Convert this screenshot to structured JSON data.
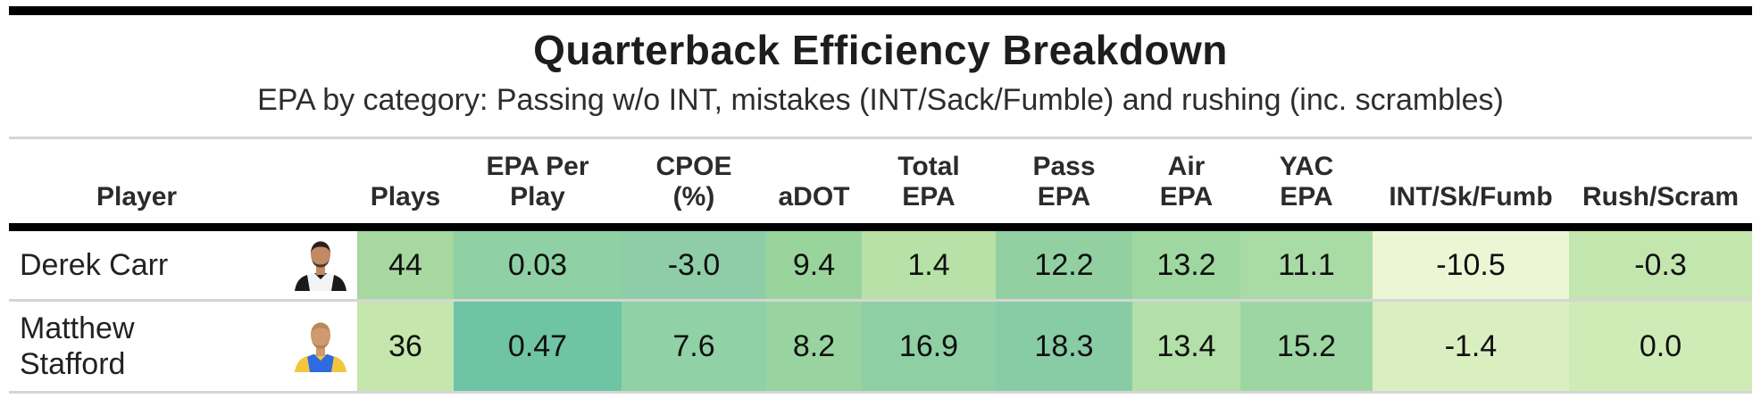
{
  "colors": {
    "top_bar": "#000000",
    "header_rule": "#000000",
    "separator": "#d5d5d5"
  },
  "chart_data": {
    "type": "table",
    "title": "Quarterback Efficiency Breakdown",
    "subtitle": "EPA by category: Passing w/o INT, mistakes (INT/Sack/Fumble) and rushing (inc. scrambles)",
    "columns": [
      {
        "id": "player",
        "label_lines": [
          "Player"
        ]
      },
      {
        "id": "plays",
        "label_lines": [
          "Plays"
        ]
      },
      {
        "id": "epa_per_play",
        "label_lines": [
          "EPA Per",
          "Play"
        ]
      },
      {
        "id": "cpoe_pct",
        "label_lines": [
          "CPOE",
          "(%)"
        ]
      },
      {
        "id": "adot",
        "label_lines": [
          "aDOT"
        ]
      },
      {
        "id": "total_epa",
        "label_lines": [
          "Total",
          "EPA"
        ]
      },
      {
        "id": "pass_epa",
        "label_lines": [
          "Pass",
          "EPA"
        ]
      },
      {
        "id": "air_epa",
        "label_lines": [
          "Air",
          "EPA"
        ]
      },
      {
        "id": "yac_epa",
        "label_lines": [
          "YAC",
          "EPA"
        ]
      },
      {
        "id": "int_sk_fumb",
        "label_lines": [
          "INT/Sk/Fumb"
        ]
      },
      {
        "id": "rush_scram",
        "label_lines": [
          "Rush/Scram"
        ]
      }
    ],
    "rows": [
      {
        "player": "Derek Carr",
        "headshot": {
          "icon": "derek-carr-headshot-icon",
          "jersey": "#f2f3f5",
          "jersey_accent": "#1a1a1a",
          "collar": "#1a1a1a",
          "skin": "#c28a62",
          "hair": "#2a211c",
          "beard": "#3a2e26"
        },
        "cells": [
          {
            "col": "plays",
            "value": "44",
            "bg": "#a6d89f"
          },
          {
            "col": "epa_per_play",
            "value": "0.03",
            "bg": "#8fd0a4"
          },
          {
            "col": "cpoe_pct",
            "value": "-3.0",
            "bg": "#8ecda8"
          },
          {
            "col": "adot",
            "value": "9.4",
            "bg": "#9ad49d"
          },
          {
            "col": "total_epa",
            "value": "1.4",
            "bg": "#b7e1a6"
          },
          {
            "col": "pass_epa",
            "value": "12.2",
            "bg": "#92d0a2"
          },
          {
            "col": "air_epa",
            "value": "13.2",
            "bg": "#9fd7a0"
          },
          {
            "col": "yac_epa",
            "value": "11.1",
            "bg": "#a9dba4"
          },
          {
            "col": "int_sk_fumb",
            "value": "-10.5",
            "bg": "#ecf6d5"
          },
          {
            "col": "rush_scram",
            "value": "-0.3",
            "bg": "#c3e6ae"
          }
        ]
      },
      {
        "player": "Matthew Stafford",
        "headshot": {
          "icon": "matthew-stafford-headshot-icon",
          "jersey": "#2f6be0",
          "jersey_accent": "#f3c53d",
          "collar": "#f3c53d",
          "skin": "#cf9a70",
          "hair": "#b98a52",
          "beard": "#a97f4e"
        },
        "cells": [
          {
            "col": "plays",
            "value": "36",
            "bg": "#c5e7ae"
          },
          {
            "col": "epa_per_play",
            "value": "0.47",
            "bg": "#6ec4a4"
          },
          {
            "col": "cpoe_pct",
            "value": "7.6",
            "bg": "#90d1a5"
          },
          {
            "col": "adot",
            "value": "8.2",
            "bg": "#99d4a0"
          },
          {
            "col": "total_epa",
            "value": "16.9",
            "bg": "#8ed0a3"
          },
          {
            "col": "pass_epa",
            "value": "18.3",
            "bg": "#88cca6"
          },
          {
            "col": "air_epa",
            "value": "13.4",
            "bg": "#b3dfa9"
          },
          {
            "col": "yac_epa",
            "value": "15.2",
            "bg": "#9dd6a3"
          },
          {
            "col": "int_sk_fumb",
            "value": "-1.4",
            "bg": "#d9efc0"
          },
          {
            "col": "rush_scram",
            "value": "0.0",
            "bg": "#cfecb7"
          }
        ]
      }
    ]
  }
}
